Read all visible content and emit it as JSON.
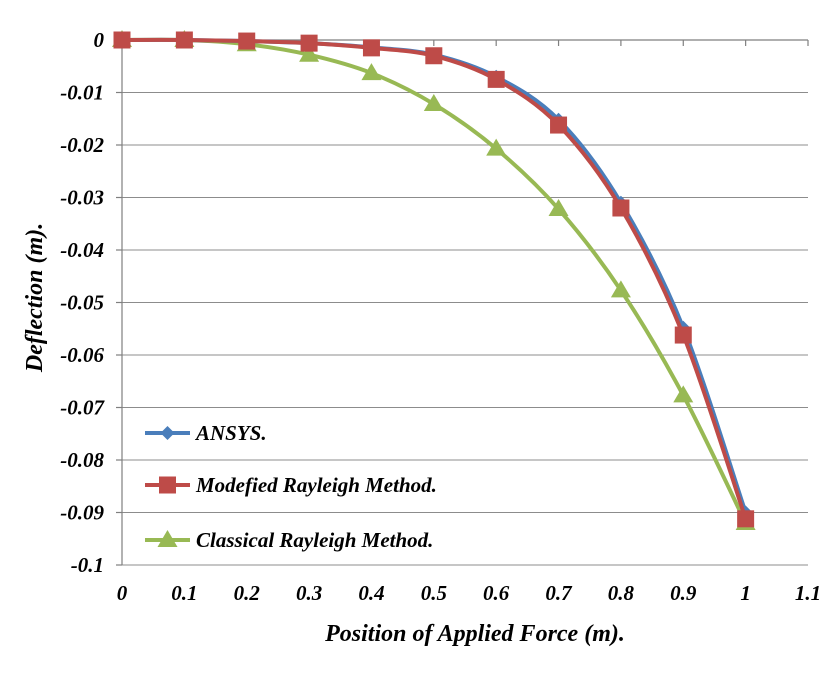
{
  "chart_data": {
    "type": "line",
    "title": "",
    "xlabel": "Position of Applied Force (m).",
    "ylabel": "Deflection (m).",
    "xlim": [
      0,
      1.1
    ],
    "ylim": [
      -0.1,
      0
    ],
    "x_ticks": [
      "0",
      "0.1",
      "0.2",
      "0.3",
      "0.4",
      "0.5",
      "0.6",
      "0.7",
      "0.8",
      "0.9",
      "1",
      "1.1"
    ],
    "y_ticks": [
      "0",
      "-0.01",
      "-0.02",
      "-0.03",
      "-0.04",
      "-0.05",
      "-0.06",
      "-0.07",
      "-0.08",
      "-0.09",
      "-0.1"
    ],
    "grid": "horizontal",
    "legend_position": "bottom-left",
    "series": [
      {
        "name": "ANSYS.",
        "color": "#4a7ebb",
        "marker": "diamond",
        "x": [
          0,
          0.1,
          0.2,
          0.3,
          0.4,
          0.5,
          0.6,
          0.7,
          0.8,
          0.9,
          1.0
        ],
        "y": [
          0,
          0,
          -0.0002,
          -0.0006,
          -0.0014,
          -0.0028,
          -0.007,
          -0.0152,
          -0.031,
          -0.0548,
          -0.09
        ]
      },
      {
        "name": "Modefied Rayleigh Method.",
        "color": "#be4b48",
        "marker": "square",
        "x": [
          0,
          0.1,
          0.2,
          0.3,
          0.4,
          0.5,
          0.6,
          0.7,
          0.8,
          0.9,
          1.0
        ],
        "y": [
          0,
          0,
          -0.0002,
          -0.0006,
          -0.0015,
          -0.003,
          -0.0075,
          -0.0162,
          -0.032,
          -0.0562,
          -0.0912
        ]
      },
      {
        "name": "Classical Rayleigh Method.",
        "color": "#98b954",
        "marker": "triangle",
        "x": [
          0,
          0.1,
          0.2,
          0.3,
          0.4,
          0.5,
          0.6,
          0.7,
          0.8,
          0.9,
          1.0
        ],
        "y": [
          0,
          0,
          -0.0008,
          -0.0028,
          -0.0063,
          -0.0122,
          -0.0207,
          -0.0322,
          -0.0477,
          -0.0677,
          -0.092
        ]
      }
    ]
  }
}
